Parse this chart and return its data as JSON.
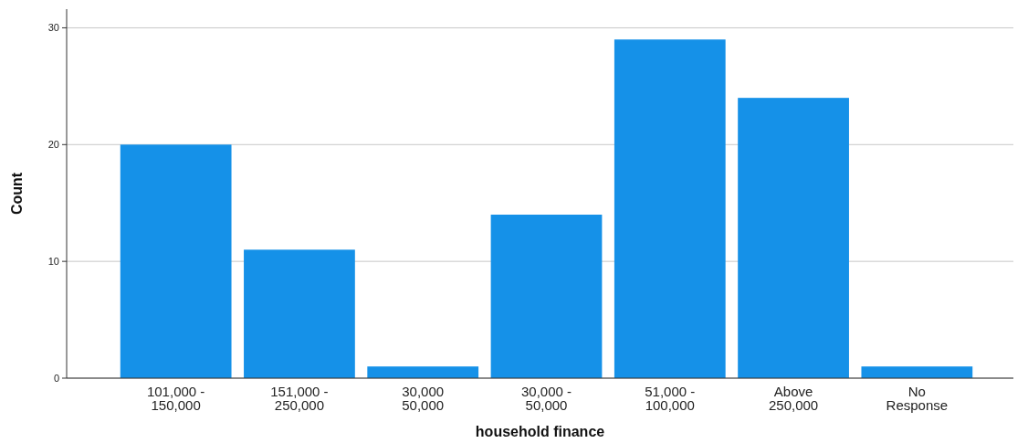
{
  "chart_data": {
    "type": "bar",
    "xlabel": "household finance",
    "ylabel": "Count",
    "categories": [
      "101,000 -\n150,000",
      "151,000 -\n250,000",
      "30,000\n50,000",
      "30,000 -\n50,000",
      "51,000 -\n100,000",
      "Above\n250,000",
      "No\nResponse"
    ],
    "values": [
      20,
      11,
      1,
      14,
      29,
      24,
      1
    ],
    "color": "#1591e8",
    "ylim": [
      0,
      31.6
    ],
    "yticks": [
      0,
      10,
      20,
      30
    ],
    "grid": "y"
  }
}
